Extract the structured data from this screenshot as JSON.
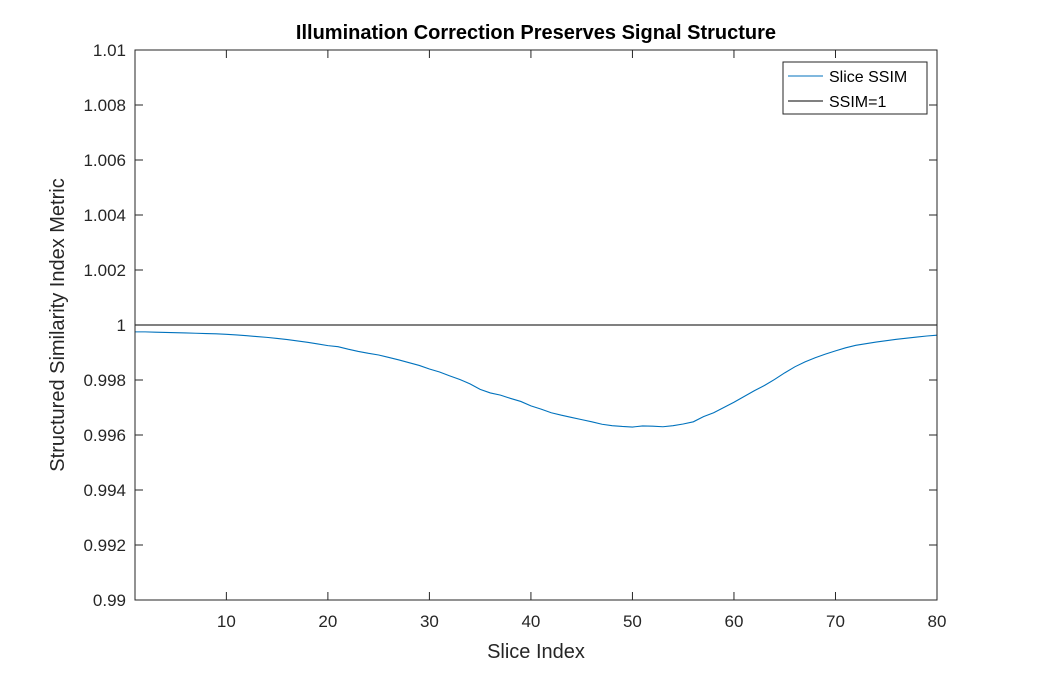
{
  "chart_data": {
    "type": "line",
    "title": "Illumination Correction Preserves Signal Structure",
    "xlabel": "Slice Index",
    "ylabel": "Structured Similarity Index Metric",
    "xlim": [
      1,
      80
    ],
    "ylim": [
      0.99,
      1.01
    ],
    "xticks": [
      10,
      20,
      30,
      40,
      50,
      60,
      70,
      80
    ],
    "yticks": [
      0.99,
      0.992,
      0.994,
      0.996,
      0.998,
      1,
      1.002,
      1.004,
      1.006,
      1.008,
      1.01
    ],
    "ytick_labels": [
      "0.99",
      "0.992",
      "0.994",
      "0.996",
      "0.998",
      "1",
      "1.002",
      "1.004",
      "1.006",
      "1.008",
      "1.01"
    ],
    "xtick_labels": [
      "10",
      "20",
      "30",
      "40",
      "50",
      "60",
      "70",
      "80"
    ],
    "grid": false,
    "legend_position": "top-right",
    "series": [
      {
        "name": "Slice SSIM",
        "color": "#0072BD",
        "x": [
          1,
          2,
          3,
          4,
          5,
          6,
          7,
          8,
          9,
          10,
          11,
          12,
          13,
          14,
          15,
          16,
          17,
          18,
          19,
          20,
          21,
          22,
          23,
          24,
          25,
          26,
          27,
          28,
          29,
          30,
          31,
          32,
          33,
          34,
          35,
          36,
          37,
          38,
          39,
          40,
          41,
          42,
          43,
          44,
          45,
          46,
          47,
          48,
          49,
          50,
          51,
          52,
          53,
          54,
          55,
          56,
          57,
          58,
          59,
          60,
          61,
          62,
          63,
          64,
          65,
          66,
          67,
          68,
          69,
          70,
          71,
          72,
          73,
          74,
          75,
          76,
          77,
          78,
          79,
          80
        ],
        "y": [
          0.99975,
          0.99975,
          0.99974,
          0.99973,
          0.99972,
          0.99971,
          0.9997,
          0.99969,
          0.99968,
          0.99966,
          0.99964,
          0.99961,
          0.99958,
          0.99955,
          0.99951,
          0.99947,
          0.99942,
          0.99937,
          0.99931,
          0.99925,
          0.99921,
          0.99912,
          0.99904,
          0.99897,
          0.99891,
          0.99882,
          0.99873,
          0.99863,
          0.99853,
          0.9984,
          0.99829,
          0.99815,
          0.99802,
          0.99786,
          0.99766,
          0.99753,
          0.99745,
          0.99733,
          0.99722,
          0.99706,
          0.99694,
          0.99681,
          0.99672,
          0.99664,
          0.99656,
          0.99648,
          0.99639,
          0.99634,
          0.99631,
          0.99629,
          0.99633,
          0.99632,
          0.9963,
          0.99634,
          0.9964,
          0.99648,
          0.99667,
          0.99681,
          0.997,
          0.99719,
          0.9974,
          0.99761,
          0.9978,
          0.99802,
          0.99826,
          0.99848,
          0.99866,
          0.99881,
          0.99894,
          0.99906,
          0.99917,
          0.99926,
          0.99932,
          0.99938,
          0.99943,
          0.99948,
          0.99952,
          0.99956,
          0.9996,
          0.99963
        ]
      },
      {
        "name": "SSIM=1",
        "color": "#000000",
        "x": [
          1,
          80
        ],
        "y": [
          1,
          1
        ]
      }
    ]
  }
}
